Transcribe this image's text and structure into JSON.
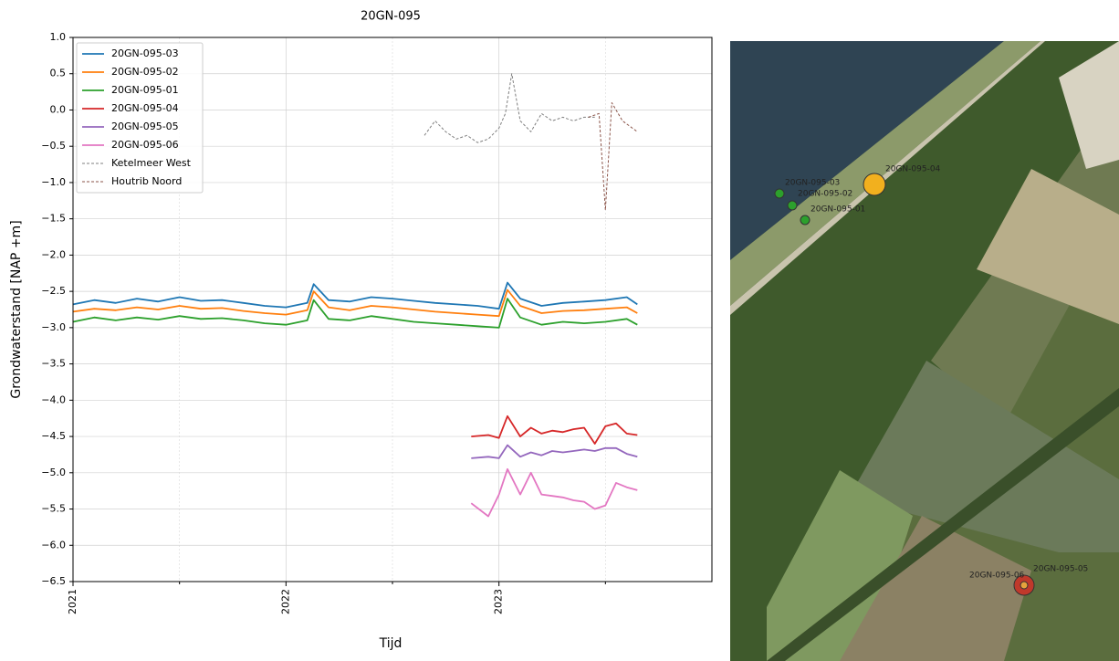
{
  "chart_data": {
    "type": "line",
    "title": "20GN-095",
    "xlabel": "Tijd",
    "ylabel": "Grondwaterstand [NAP +m]",
    "xlim": [
      2021,
      2024
    ],
    "xticks": [
      2021,
      2022,
      2023
    ],
    "xminor": [
      2021.5,
      2022.5,
      2023.5
    ],
    "ylim": [
      -6.5,
      1.0
    ],
    "yticks": [
      {
        "value": 1.0,
        "label": "1.0"
      },
      {
        "value": 0.5,
        "label": "0.5"
      },
      {
        "value": 0,
        "label": "0.0"
      },
      {
        "value": -0.5,
        "label": "−0.5"
      },
      {
        "value": -1.0,
        "label": "−1.0"
      },
      {
        "value": -1.5,
        "label": "−1.5"
      },
      {
        "value": -2.0,
        "label": "−2.0"
      },
      {
        "value": -2.5,
        "label": "−2.5"
      },
      {
        "value": -3.0,
        "label": "−3.0"
      },
      {
        "value": -3.5,
        "label": "−3.5"
      },
      {
        "value": -4.0,
        "label": "−4.0"
      },
      {
        "value": -4.5,
        "label": "−4.5"
      },
      {
        "value": -5.0,
        "label": "−5.0"
      },
      {
        "value": -5.5,
        "label": "−5.5"
      },
      {
        "value": -6.0,
        "label": "−6.0"
      },
      {
        "value": -6.5,
        "label": "−6.5"
      }
    ],
    "grid": true,
    "legend": "upper left",
    "series": [
      {
        "name": "20GN-095-03",
        "color": "#1f77b4",
        "style": "solid",
        "x": [
          2021.0,
          2021.1,
          2021.2,
          2021.3,
          2021.4,
          2021.5,
          2021.6,
          2021.7,
          2021.8,
          2021.9,
          2022.0,
          2022.1,
          2022.13,
          2022.2,
          2022.3,
          2022.4,
          2022.5,
          2022.6,
          2022.7,
          2022.8,
          2022.9,
          2023.0,
          2023.04,
          2023.1,
          2023.2,
          2023.3,
          2023.4,
          2023.5,
          2023.6,
          2023.65
        ],
        "values": [
          -2.68,
          -2.62,
          -2.66,
          -2.6,
          -2.64,
          -2.58,
          -2.63,
          -2.62,
          -2.66,
          -2.7,
          -2.72,
          -2.66,
          -2.4,
          -2.62,
          -2.64,
          -2.58,
          -2.6,
          -2.63,
          -2.66,
          -2.68,
          -2.7,
          -2.74,
          -2.38,
          -2.6,
          -2.7,
          -2.66,
          -2.64,
          -2.62,
          -2.58,
          -2.68
        ]
      },
      {
        "name": "20GN-095-02",
        "color": "#ff7f0e",
        "style": "solid",
        "x": [
          2021.0,
          2021.1,
          2021.2,
          2021.3,
          2021.4,
          2021.5,
          2021.6,
          2021.7,
          2021.8,
          2021.9,
          2022.0,
          2022.1,
          2022.13,
          2022.2,
          2022.3,
          2022.4,
          2022.5,
          2022.6,
          2022.7,
          2022.8,
          2022.9,
          2023.0,
          2023.04,
          2023.1,
          2023.2,
          2023.3,
          2023.4,
          2023.5,
          2023.6,
          2023.65
        ],
        "values": [
          -2.78,
          -2.74,
          -2.76,
          -2.72,
          -2.75,
          -2.7,
          -2.74,
          -2.73,
          -2.77,
          -2.8,
          -2.82,
          -2.76,
          -2.5,
          -2.72,
          -2.76,
          -2.7,
          -2.72,
          -2.75,
          -2.78,
          -2.8,
          -2.82,
          -2.84,
          -2.48,
          -2.7,
          -2.8,
          -2.77,
          -2.76,
          -2.74,
          -2.72,
          -2.8
        ]
      },
      {
        "name": "20GN-095-01",
        "color": "#2ca02c",
        "style": "solid",
        "x": [
          2021.0,
          2021.1,
          2021.2,
          2021.3,
          2021.4,
          2021.5,
          2021.6,
          2021.7,
          2021.8,
          2021.9,
          2022.0,
          2022.1,
          2022.13,
          2022.2,
          2022.3,
          2022.4,
          2022.5,
          2022.6,
          2022.7,
          2022.8,
          2022.9,
          2023.0,
          2023.04,
          2023.1,
          2023.2,
          2023.3,
          2023.4,
          2023.5,
          2023.6,
          2023.65
        ],
        "values": [
          -2.92,
          -2.86,
          -2.9,
          -2.86,
          -2.89,
          -2.84,
          -2.88,
          -2.87,
          -2.9,
          -2.94,
          -2.96,
          -2.9,
          -2.62,
          -2.88,
          -2.9,
          -2.84,
          -2.88,
          -2.92,
          -2.94,
          -2.96,
          -2.98,
          -3.0,
          -2.6,
          -2.86,
          -2.96,
          -2.92,
          -2.94,
          -2.92,
          -2.88,
          -2.96
        ]
      },
      {
        "name": "20GN-095-04",
        "color": "#d62728",
        "style": "solid",
        "x": [
          2022.87,
          2022.95,
          2023.0,
          2023.04,
          2023.1,
          2023.15,
          2023.2,
          2023.25,
          2023.3,
          2023.35,
          2023.4,
          2023.45,
          2023.5,
          2023.55,
          2023.6,
          2023.65
        ],
        "values": [
          -4.5,
          -4.48,
          -4.52,
          -4.22,
          -4.5,
          -4.38,
          -4.46,
          -4.42,
          -4.44,
          -4.4,
          -4.38,
          -4.6,
          -4.36,
          -4.32,
          -4.46,
          -4.48
        ]
      },
      {
        "name": "20GN-095-05",
        "color": "#9467bd",
        "style": "solid",
        "x": [
          2022.87,
          2022.95,
          2023.0,
          2023.04,
          2023.1,
          2023.15,
          2023.2,
          2023.25,
          2023.3,
          2023.35,
          2023.4,
          2023.45,
          2023.5,
          2023.55,
          2023.6,
          2023.65
        ],
        "values": [
          -4.8,
          -4.78,
          -4.8,
          -4.62,
          -4.78,
          -4.72,
          -4.76,
          -4.7,
          -4.72,
          -4.7,
          -4.68,
          -4.7,
          -4.66,
          -4.66,
          -4.74,
          -4.78
        ]
      },
      {
        "name": "20GN-095-06",
        "color": "#e377c2",
        "style": "solid",
        "x": [
          2022.87,
          2022.95,
          2023.0,
          2023.04,
          2023.1,
          2023.15,
          2023.2,
          2023.25,
          2023.3,
          2023.35,
          2023.4,
          2023.45,
          2023.5,
          2023.55,
          2023.6,
          2023.65
        ],
        "values": [
          -5.42,
          -5.6,
          -5.3,
          -4.95,
          -5.3,
          -5.0,
          -5.3,
          -5.32,
          -5.34,
          -5.38,
          -5.4,
          -5.5,
          -5.45,
          -5.14,
          -5.2,
          -5.24
        ]
      },
      {
        "name": "Ketelmeer West",
        "color": "#7f7f7f",
        "style": "dashed",
        "x": [
          2022.65,
          2022.7,
          2022.75,
          2022.8,
          2022.85,
          2022.9,
          2022.95,
          2023.0,
          2023.03,
          2023.06,
          2023.1,
          2023.15,
          2023.2,
          2023.25,
          2023.3,
          2023.35,
          2023.4,
          2023.45
        ],
        "values": [
          -0.35,
          -0.15,
          -0.3,
          -0.4,
          -0.35,
          -0.45,
          -0.4,
          -0.25,
          -0.05,
          0.5,
          -0.15,
          -0.3,
          -0.05,
          -0.15,
          -0.1,
          -0.15,
          -0.1,
          -0.1
        ]
      },
      {
        "name": "Houtrib Noord",
        "color": "#8c564b",
        "style": "dashed",
        "x": [
          2023.42,
          2023.47,
          2023.5,
          2023.53,
          2023.58,
          2023.65
        ],
        "values": [
          -0.1,
          -0.05,
          -1.38,
          0.1,
          -0.15,
          -0.3
        ]
      }
    ]
  },
  "map": {
    "markers": [
      {
        "label": "20GN-095-03",
        "color": "#2ca02c"
      },
      {
        "label": "20GN-095-02",
        "color": "#2ca02c"
      },
      {
        "label": "20GN-095-01",
        "color": "#2ca02c"
      },
      {
        "label": "20GN-095-04",
        "color": "#f2b01e"
      },
      {
        "label": "20GN-095-06",
        "color": "#c0392b"
      },
      {
        "label": "20GN-095-05",
        "color": "#e6a23c"
      }
    ]
  }
}
